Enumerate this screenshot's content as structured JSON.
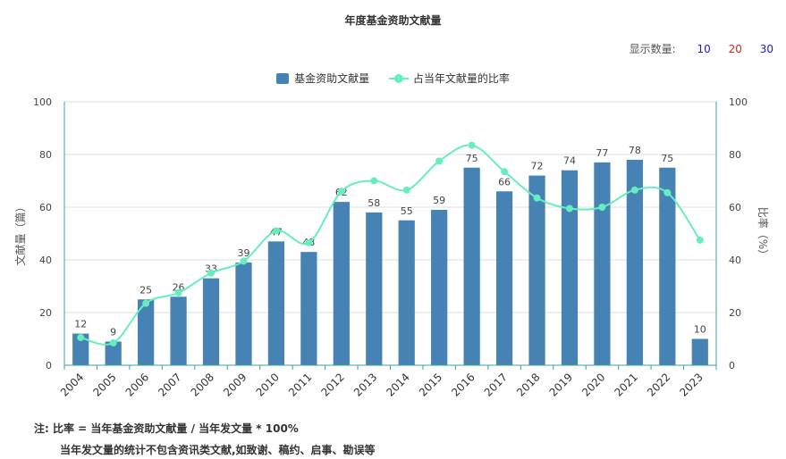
{
  "chart_data": {
    "type": "bar",
    "title": "年度基金资助文献量",
    "categories": [
      "2004",
      "2005",
      "2006",
      "2007",
      "2008",
      "2009",
      "2010",
      "2011",
      "2012",
      "2013",
      "2014",
      "2015",
      "2016",
      "2017",
      "2018",
      "2019",
      "2020",
      "2021",
      "2022",
      "2023"
    ],
    "series": [
      {
        "name": "基金资助文献量",
        "type": "bar",
        "axis": "left",
        "color": "#4682b4",
        "values": [
          12,
          9,
          25,
          26,
          33,
          39,
          47,
          43,
          62,
          58,
          55,
          59,
          75,
          66,
          72,
          74,
          77,
          78,
          75,
          10
        ]
      },
      {
        "name": "占当年文献量的比率",
        "type": "line",
        "axis": "right",
        "color": "#66eec0",
        "values": [
          10.5,
          8.5,
          23.5,
          27.5,
          35,
          39.5,
          51,
          46.5,
          66,
          70,
          66.5,
          77.5,
          83.5,
          73.5,
          63.5,
          59.5,
          60,
          66.5,
          65.5,
          47.5
        ]
      }
    ],
    "ylabel": "文献量（篇）",
    "y2label": "比率（%）",
    "ylim": [
      0,
      100
    ],
    "y2lim": [
      0,
      100
    ],
    "yticks": [
      "0",
      "20",
      "40",
      "60",
      "80",
      "100"
    ],
    "grid": true,
    "legend": "top-center"
  },
  "controls": {
    "label": "显示数量:",
    "options": [
      {
        "text": "10",
        "color": "#1a1acc"
      },
      {
        "text": "20",
        "color": "#e02020"
      },
      {
        "text": "30",
        "color": "#1a1acc"
      }
    ]
  },
  "notes": {
    "line1": "注:  比率 = 当年基金资助文献量 / 当年发文量 * 100%",
    "line2": "当年发文量的统计不包含资讯类文献,如致谢、稿约、启事、勘误等"
  }
}
